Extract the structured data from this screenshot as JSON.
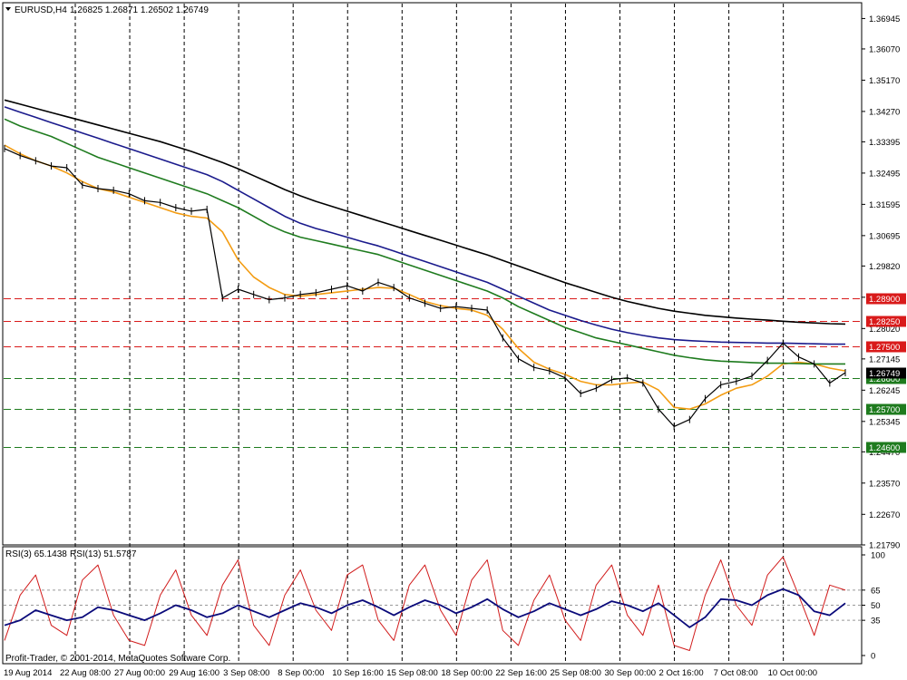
{
  "header": {
    "symbol": "EURUSD,H4",
    "ohlc": "1.26825 1.26871 1.26502 1.26749"
  },
  "rsi_header": {
    "rsi3": "RSI(3) 65.1438",
    "rsi13": "RSI(13) 51.5787"
  },
  "footer": {
    "copyright": "Profit-Trader, © 2001-2014, MetaQuotes Software Corp."
  },
  "colors": {
    "bg": "#ffffff",
    "grid": "#000000",
    "ema_fast": "#f39c12",
    "ma_green": "#1e7b1e",
    "ma_blue": "#1a1a8c",
    "ma_black": "#000000",
    "resistance": "#d91a1a",
    "support": "#1e7b1e",
    "rsi3": "#d11b1b",
    "rsi13": "#0a0a7a"
  },
  "chart_data": {
    "type": "line",
    "title": "EURUSD,H4",
    "price_axis": {
      "ylim": [
        1.2179,
        1.374
      ],
      "ticks": [
        "1.36945",
        "1.36070",
        "1.35170",
        "1.34270",
        "1.33395",
        "1.32495",
        "1.31595",
        "1.30695",
        "1.29820",
        "1.28920",
        "1.28020",
        "1.27145",
        "1.26749",
        "1.26245",
        "1.25345",
        "1.24470",
        "1.23570",
        "1.22670",
        "1.21790"
      ]
    },
    "x_labels": [
      "19 Aug 2014",
      "22 Aug 08:00",
      "27 Aug 00:00",
      "29 Aug 16:00",
      "3 Sep 08:00",
      "8 Sep 00:00",
      "10 Sep 16:00",
      "15 Sep 08:00",
      "18 Sep 00:00",
      "22 Sep 16:00",
      "25 Sep 08:00",
      "30 Sep 00:00",
      "2 Oct 16:00",
      "7 Oct 08:00",
      "10 Oct 00:00"
    ],
    "levels": [
      {
        "value": "1.28900",
        "type": "resistance"
      },
      {
        "value": "1.28250",
        "type": "resistance"
      },
      {
        "value": "1.27500",
        "type": "resistance"
      },
      {
        "value": "1.26600",
        "type": "support"
      },
      {
        "value": "1.25700",
        "type": "support"
      },
      {
        "value": "1.24600",
        "type": "support"
      }
    ],
    "current_price": "1.26749",
    "series": [
      {
        "role": "price",
        "color": "#000000",
        "values": [
          1.332,
          1.33,
          1.3285,
          1.327,
          1.3265,
          1.3215,
          1.3205,
          1.32,
          1.319,
          1.317,
          1.3165,
          1.315,
          1.314,
          1.3145,
          1.289,
          1.2915,
          1.29,
          1.2885,
          1.289,
          1.29,
          1.2905,
          1.2915,
          1.2925,
          1.291,
          1.2935,
          1.292,
          1.289,
          1.2875,
          1.286,
          1.2865,
          1.286,
          1.2855,
          1.2775,
          1.2715,
          1.269,
          1.268,
          1.266,
          1.2615,
          1.263,
          1.2655,
          1.266,
          1.2645,
          1.257,
          1.252,
          1.254,
          1.26,
          1.264,
          1.265,
          1.2665,
          1.271,
          1.276,
          1.272,
          1.27,
          1.2645,
          1.2675
        ]
      },
      {
        "role": "ema_fast",
        "color": "#f39c12",
        "values": [
          1.333,
          1.3305,
          1.3285,
          1.327,
          1.325,
          1.3225,
          1.3205,
          1.3195,
          1.318,
          1.3165,
          1.315,
          1.3135,
          1.3125,
          1.312,
          1.308,
          1.3,
          1.295,
          1.292,
          1.29,
          1.2895,
          1.29,
          1.2905,
          1.291,
          1.2915,
          1.292,
          1.2918,
          1.29,
          1.288,
          1.2868,
          1.286,
          1.2855,
          1.284,
          1.28,
          1.2745,
          1.2705,
          1.2685,
          1.267,
          1.265,
          1.264,
          1.264,
          1.2645,
          1.2648,
          1.2625,
          1.2575,
          1.257,
          1.2585,
          1.261,
          1.263,
          1.264,
          1.2665,
          1.27,
          1.2705,
          1.27,
          1.2688,
          1.268
        ]
      },
      {
        "role": "ma_green",
        "color": "#1e7b1e",
        "values": [
          1.3405,
          1.3385,
          1.337,
          1.3355,
          1.3335,
          1.3315,
          1.3295,
          1.328,
          1.3265,
          1.325,
          1.3235,
          1.322,
          1.3205,
          1.319,
          1.317,
          1.315,
          1.3125,
          1.31,
          1.308,
          1.3065,
          1.3055,
          1.3045,
          1.3035,
          1.3025,
          1.3015,
          1.3,
          1.2985,
          1.297,
          1.2955,
          1.294,
          1.2925,
          1.291,
          1.289,
          1.2865,
          1.2845,
          1.2825,
          1.2805,
          1.279,
          1.2775,
          1.2765,
          1.2755,
          1.2745,
          1.2735,
          1.2725,
          1.2718,
          1.2712,
          1.2708,
          1.2706,
          1.2704,
          1.2702,
          1.2702,
          1.2701,
          1.27,
          1.27,
          1.27
        ]
      },
      {
        "role": "ma_blue",
        "color": "#1a1a8c",
        "values": [
          1.344,
          1.3425,
          1.341,
          1.3395,
          1.338,
          1.3365,
          1.335,
          1.3335,
          1.332,
          1.3305,
          1.329,
          1.3275,
          1.326,
          1.3245,
          1.3225,
          1.32,
          1.3175,
          1.315,
          1.3125,
          1.3105,
          1.309,
          1.3078,
          1.3065,
          1.3052,
          1.304,
          1.3025,
          1.301,
          1.2995,
          1.298,
          1.2965,
          1.295,
          1.2935,
          1.2915,
          1.2895,
          1.2875,
          1.2855,
          1.284,
          1.2825,
          1.2812,
          1.28,
          1.279,
          1.2782,
          1.2775,
          1.277,
          1.2767,
          1.2765,
          1.2763,
          1.2762,
          1.2761,
          1.276,
          1.276,
          1.2759,
          1.2758,
          1.2757,
          1.2757
        ]
      },
      {
        "role": "ma_black",
        "color": "#000000",
        "values": [
          1.346,
          1.3448,
          1.3436,
          1.3424,
          1.3412,
          1.34,
          1.3388,
          1.3376,
          1.3364,
          1.3352,
          1.334,
          1.3326,
          1.3312,
          1.3296,
          1.328,
          1.3262,
          1.3242,
          1.3222,
          1.3202,
          1.3184,
          1.3168,
          1.3154,
          1.314,
          1.3126,
          1.3112,
          1.3098,
          1.3084,
          1.307,
          1.3056,
          1.3042,
          1.3028,
          1.3014,
          1.2998,
          1.2982,
          1.2966,
          1.295,
          1.2934,
          1.292,
          1.2906,
          1.2892,
          1.288,
          1.287,
          1.286,
          1.2852,
          1.2846,
          1.284,
          1.2836,
          1.2832,
          1.2829,
          1.2826,
          1.2823,
          1.282,
          1.2818,
          1.2816,
          1.2815
        ]
      }
    ],
    "rsi_axis": {
      "ylim": [
        0,
        100
      ],
      "ticks": [
        "100",
        "65",
        "50",
        "35",
        "0"
      ]
    },
    "rsi_series": [
      {
        "name": "RSI(3)",
        "color": "#d11b1b",
        "values": [
          15,
          60,
          80,
          30,
          20,
          75,
          90,
          40,
          15,
          10,
          60,
          85,
          40,
          20,
          70,
          95,
          30,
          10,
          60,
          85,
          45,
          25,
          80,
          90,
          35,
          15,
          70,
          90,
          45,
          20,
          75,
          95,
          25,
          10,
          55,
          80,
          35,
          15,
          70,
          90,
          40,
          20,
          70,
          10,
          5,
          60,
          95,
          50,
          30,
          80,
          98,
          60,
          20,
          70,
          65
        ]
      },
      {
        "name": "RSI(13)",
        "color": "#0a0a7a",
        "values": [
          30,
          35,
          45,
          40,
          35,
          38,
          48,
          45,
          40,
          35,
          42,
          50,
          45,
          38,
          42,
          50,
          44,
          38,
          45,
          52,
          48,
          42,
          50,
          55,
          48,
          40,
          48,
          55,
          50,
          42,
          48,
          56,
          46,
          38,
          44,
          52,
          46,
          40,
          46,
          54,
          50,
          44,
          52,
          40,
          28,
          38,
          56,
          55,
          50,
          60,
          66,
          60,
          44,
          40,
          52
        ]
      }
    ]
  }
}
